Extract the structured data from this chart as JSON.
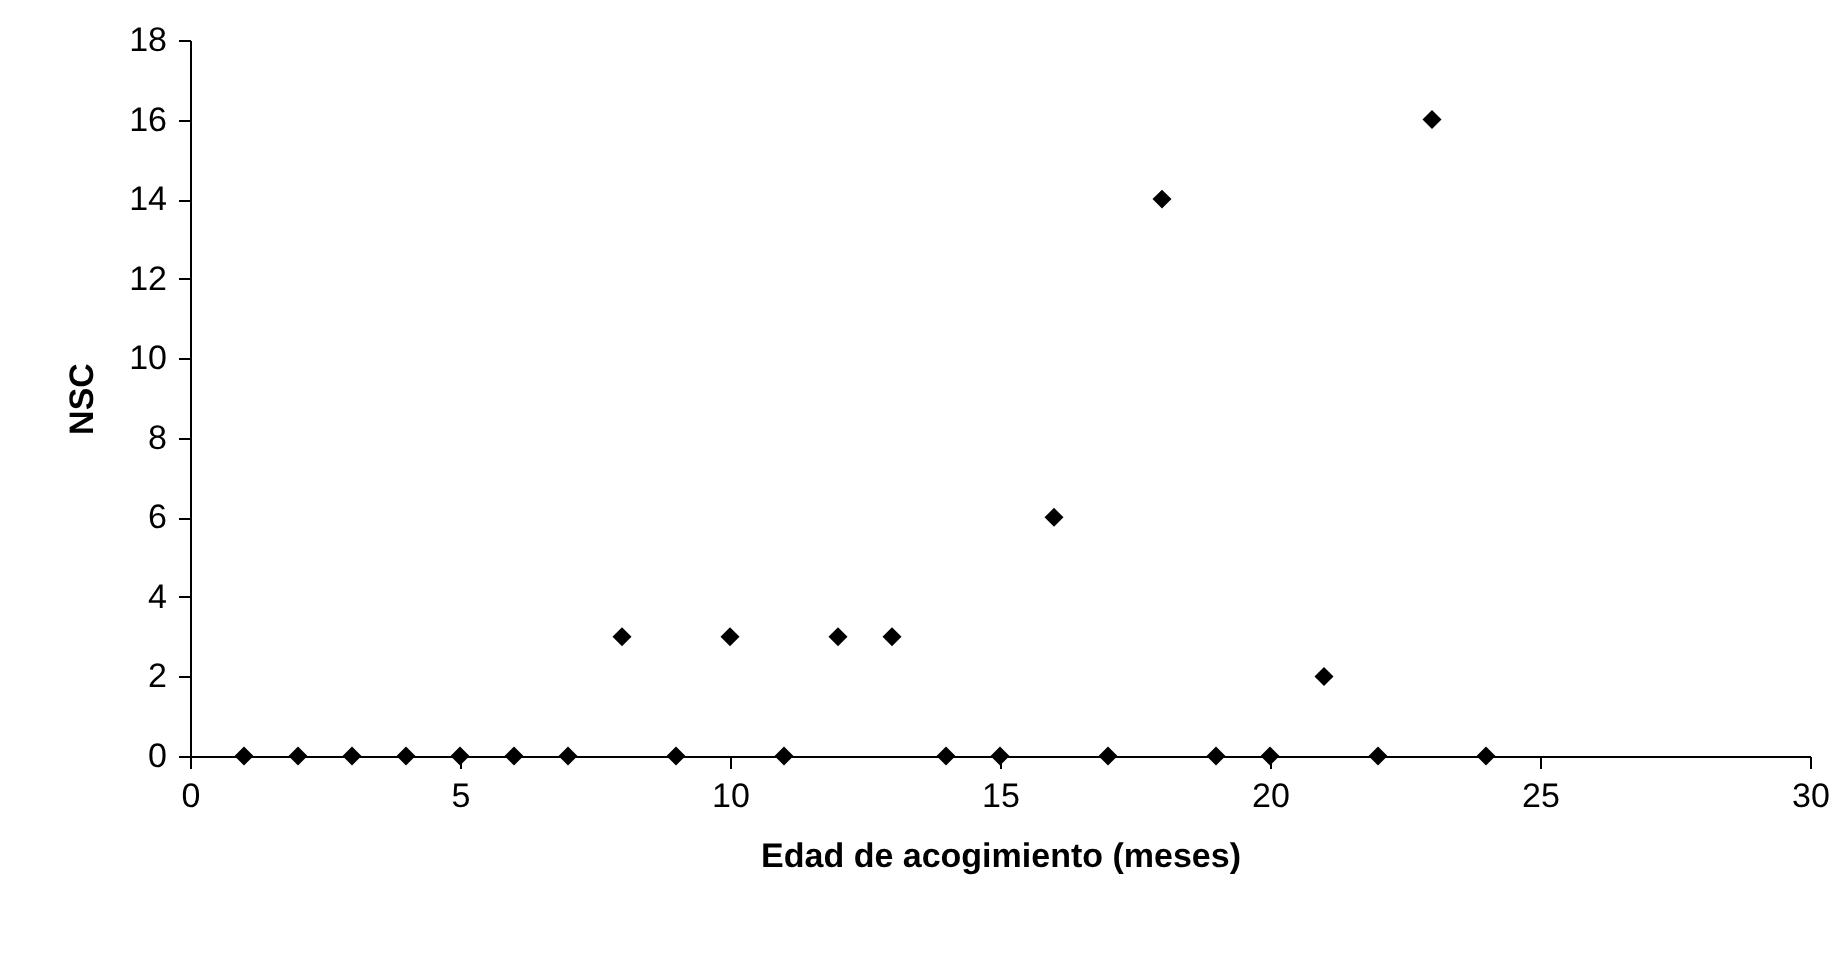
{
  "chart_data": {
    "type": "scatter",
    "xlabel": "Edad de acogimiento (meses)",
    "ylabel": "NSC",
    "x": [
      1,
      2,
      3,
      4,
      5,
      6,
      7,
      8,
      9,
      10,
      11,
      12,
      13,
      14,
      15,
      16,
      17,
      18,
      19,
      20,
      21,
      22,
      23,
      24
    ],
    "series": [
      {
        "color": "#000000",
        "values": [
          0,
          0,
          0,
          0,
          0,
          0,
          0,
          3,
          0,
          3,
          0,
          3,
          3,
          0,
          0,
          6,
          0,
          14,
          0,
          0,
          2,
          0,
          16,
          0
        ]
      }
    ],
    "xlim": [
      0,
      30
    ],
    "xticks": [
      0,
      5,
      10,
      15,
      20,
      25,
      30
    ],
    "ylim": [
      0,
      18
    ],
    "yticks": [
      0,
      2,
      4,
      6,
      8,
      10,
      12,
      14,
      16,
      18
    ],
    "grid": false,
    "legend": false,
    "marker": "diamond"
  }
}
